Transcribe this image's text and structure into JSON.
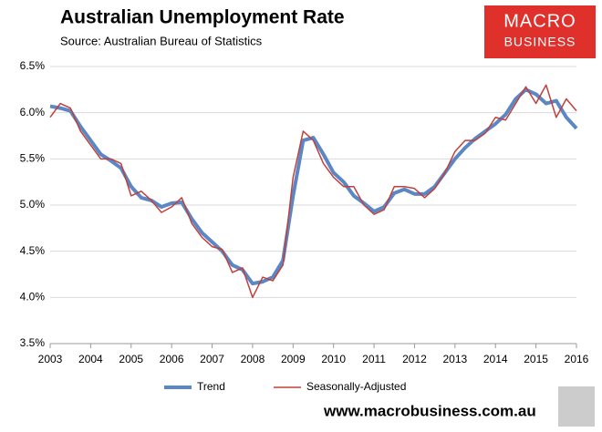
{
  "chart_data": {
    "type": "line",
    "title": "Australian Unemployment Rate",
    "subtitle": "Source: Australian Bureau of Statistics",
    "logo": [
      "MACRO",
      "BUSINESS"
    ],
    "footer": "www.macrobusiness.com.au",
    "x": [
      2003,
      2003.25,
      2003.5,
      2003.75,
      2004,
      2004.25,
      2004.5,
      2004.75,
      2005,
      2005.25,
      2005.5,
      2005.75,
      2006,
      2006.25,
      2006.5,
      2006.75,
      2007,
      2007.25,
      2007.5,
      2007.75,
      2008,
      2008.25,
      2008.5,
      2008.75,
      2009,
      2009.25,
      2009.5,
      2009.75,
      2010,
      2010.25,
      2010.5,
      2010.75,
      2011,
      2011.25,
      2011.5,
      2011.75,
      2012,
      2012.25,
      2012.5,
      2012.75,
      2013,
      2013.25,
      2013.5,
      2013.75,
      2014,
      2014.25,
      2014.5,
      2014.75,
      2015,
      2015.25,
      2015.5,
      2015.75,
      2016
    ],
    "series": [
      {
        "name": "Trend",
        "color": "#5b87c5",
        "width": 4,
        "values": [
          6.07,
          6.05,
          6.02,
          5.85,
          5.7,
          5.55,
          5.48,
          5.4,
          5.2,
          5.08,
          5.05,
          4.98,
          5.02,
          5.03,
          4.85,
          4.7,
          4.6,
          4.5,
          4.35,
          4.3,
          4.15,
          4.17,
          4.22,
          4.4,
          5.1,
          5.7,
          5.73,
          5.55,
          5.35,
          5.25,
          5.1,
          5.02,
          4.93,
          4.98,
          5.13,
          5.17,
          5.12,
          5.12,
          5.2,
          5.35,
          5.5,
          5.62,
          5.72,
          5.8,
          5.88,
          5.98,
          6.15,
          6.25,
          6.2,
          6.1,
          6.13,
          5.95,
          5.83
        ]
      },
      {
        "name": "Seasonally-Adjusted",
        "color": "#c0403c",
        "width": 1.5,
        "values": [
          5.95,
          6.1,
          6.05,
          5.8,
          5.65,
          5.5,
          5.5,
          5.45,
          5.1,
          5.15,
          5.05,
          4.92,
          4.98,
          5.08,
          4.8,
          4.65,
          4.55,
          4.52,
          4.27,
          4.32,
          4.0,
          4.22,
          4.18,
          4.35,
          5.3,
          5.8,
          5.7,
          5.45,
          5.3,
          5.2,
          5.2,
          5.0,
          4.9,
          4.95,
          5.2,
          5.2,
          5.18,
          5.08,
          5.18,
          5.35,
          5.58,
          5.7,
          5.7,
          5.78,
          5.95,
          5.92,
          6.1,
          6.28,
          6.1,
          6.3,
          5.95,
          6.15,
          6.02
        ]
      }
    ],
    "xlim": [
      2003,
      2016
    ],
    "xticks": [
      2003,
      2004,
      2005,
      2006,
      2007,
      2008,
      2009,
      2010,
      2011,
      2012,
      2013,
      2014,
      2015,
      2016
    ],
    "ylim": [
      3.5,
      6.5
    ],
    "yticks": [
      {
        "value": 3.5,
        "label": "3.5%"
      },
      {
        "value": 4,
        "label": "4.0%"
      },
      {
        "value": 4.5,
        "label": "4.5%"
      },
      {
        "value": 5,
        "label": "5.0%"
      },
      {
        "value": 5.5,
        "label": "5.5%"
      },
      {
        "value": 6,
        "label": "6.0%"
      },
      {
        "value": 6.5,
        "label": "6.5%"
      }
    ],
    "grid": true,
    "legend": "bottom"
  }
}
